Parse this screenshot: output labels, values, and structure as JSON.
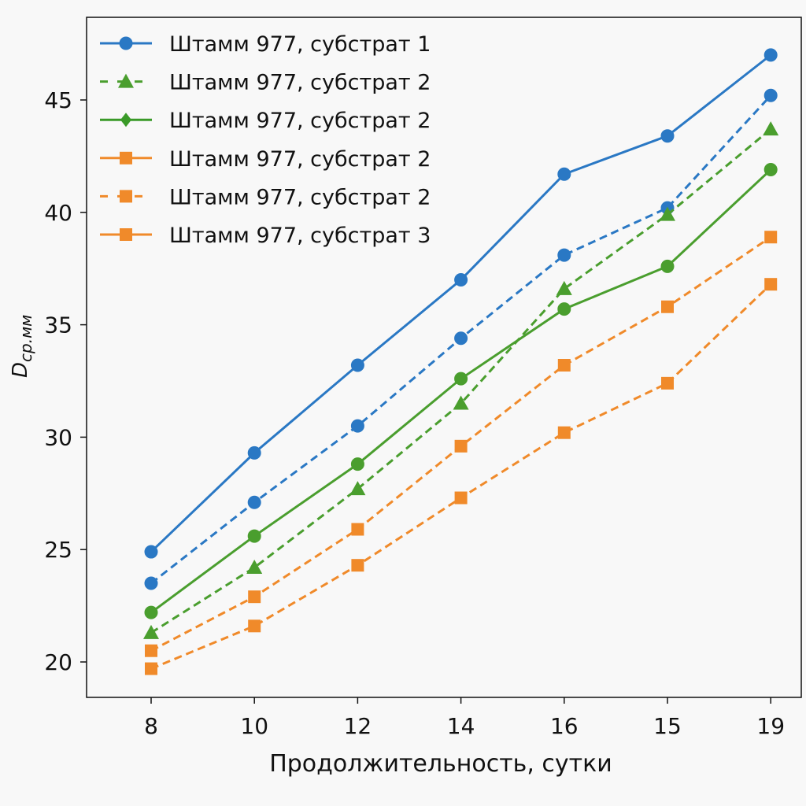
{
  "chart_data": {
    "type": "line",
    "xlabel": "Продолжительность, сутки",
    "ylabel_main": "D",
    "ylabel_sub": "ср.мм",
    "categories": [
      "8",
      "10",
      "12",
      "14",
      "16",
      "15",
      "19"
    ],
    "ylim": [
      18.4,
      48.2
    ],
    "yticks": [
      20,
      25,
      30,
      35,
      40,
      45
    ],
    "grid": false,
    "legend_position": "top-left",
    "legend": [
      {
        "label": "Штамм 977, субстрат 1",
        "color": "#2a78c4",
        "dash": "solid",
        "marker": "circle"
      },
      {
        "label": "Штамм 977, субстрат 2",
        "color": "#4a9e2e",
        "dash": "dashed",
        "marker": "triangle"
      },
      {
        "label": "Штамм 977, субстрат 2",
        "color": "#3a9a28",
        "dash": "solid",
        "marker": "diamond"
      },
      {
        "label": "Штамм 977, субстрат 2",
        "color": "#f08a2a",
        "dash": "solid",
        "marker": "square"
      },
      {
        "label": "Штамм 977, субстрат 2",
        "color": "#f08a2a",
        "dash": "dashed",
        "marker": "square"
      },
      {
        "label": "Штамм 977, субстрат 3",
        "color": "#f08a2a",
        "dash": "solid",
        "marker": "square"
      }
    ],
    "series": [
      {
        "color": "#2a78c4",
        "dash": "solid",
        "marker": "circle",
        "values": [
          24.9,
          29.3,
          33.2,
          37.0,
          41.7,
          43.4,
          47.0
        ]
      },
      {
        "color": "#2a78c4",
        "dash": "dashed",
        "marker": "circle",
        "values": [
          23.5,
          27.1,
          30.5,
          34.4,
          38.1,
          40.2,
          45.2
        ]
      },
      {
        "color": "#4a9e2e",
        "dash": "dashed",
        "marker": "triangle",
        "values": [
          21.3,
          24.2,
          27.7,
          31.5,
          36.6,
          39.9,
          43.7
        ]
      },
      {
        "color": "#4a9e2e",
        "dash": "solid",
        "marker": "circle",
        "values": [
          22.2,
          25.6,
          28.8,
          32.6,
          35.7,
          37.6,
          41.9
        ]
      },
      {
        "color": "#f08a2a",
        "dash": "dashed",
        "marker": "square",
        "values": [
          20.5,
          22.9,
          25.9,
          29.6,
          33.2,
          35.8,
          38.9
        ]
      },
      {
        "color": "#f08a2a",
        "dash": "dashed",
        "marker": "square",
        "values": [
          19.7,
          21.6,
          24.3,
          27.3,
          30.2,
          32.4,
          36.8
        ]
      }
    ]
  }
}
